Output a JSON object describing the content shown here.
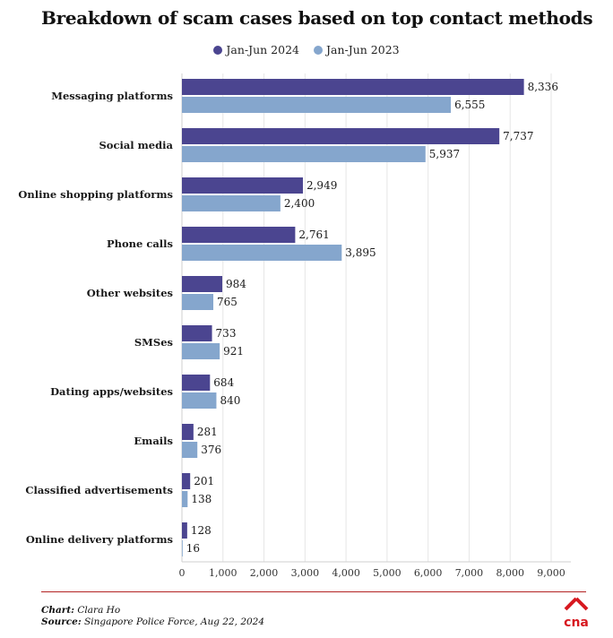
{
  "title": "Breakdown of scam cases based on top contact methods",
  "colors": {
    "series_2024": "#4b4590",
    "series_2023": "#85a6cd",
    "grid": "#e6e6e6",
    "footer_rule": "#b22222",
    "logo": "#d71920"
  },
  "chart_data": {
    "type": "bar",
    "orientation": "horizontal",
    "title": "Breakdown of scam cases based on top contact methods",
    "categories": [
      "Messaging platforms",
      "Social media",
      "Online shopping platforms",
      "Phone calls",
      "Other websites",
      "SMSes",
      "Dating apps/websites",
      "Emails",
      "Classified advertisements",
      "Online delivery platforms"
    ],
    "series": [
      {
        "name": "Jan-Jun 2024",
        "values": [
          8336,
          7737,
          2949,
          2761,
          984,
          733,
          684,
          281,
          201,
          128
        ],
        "labels": [
          "8,336",
          "7,737",
          "2,949",
          "2,761",
          "984",
          "733",
          "684",
          "281",
          "201",
          "128"
        ]
      },
      {
        "name": "Jan-Jun 2023",
        "values": [
          6555,
          5937,
          2400,
          3895,
          765,
          921,
          840,
          376,
          138,
          16
        ],
        "labels": [
          "6,555",
          "5,937",
          "2,400",
          "3,895",
          "765",
          "921",
          "840",
          "376",
          "138",
          "16"
        ]
      }
    ],
    "xlim": [
      0,
      9000
    ],
    "xticks": [
      0,
      1000,
      2000,
      3000,
      4000,
      5000,
      6000,
      7000,
      8000,
      9000
    ],
    "xtick_labels": [
      "0",
      "1,000",
      "2,000",
      "3,000",
      "4,000",
      "5,000",
      "6,000",
      "7,000",
      "8,000",
      "9,000"
    ],
    "xlabel": "",
    "ylabel": "",
    "grid": true,
    "legend_position": "top-center"
  },
  "legend": {
    "items": [
      "Jan-Jun 2024",
      "Jan-Jun 2023"
    ]
  },
  "footer": {
    "chart_label": "Chart:",
    "chart_value": " Clara Ho",
    "source_label": "Source:",
    "source_value": " Singapore Police Force, Aug 22, 2024"
  },
  "logo": {
    "text": "cna"
  }
}
